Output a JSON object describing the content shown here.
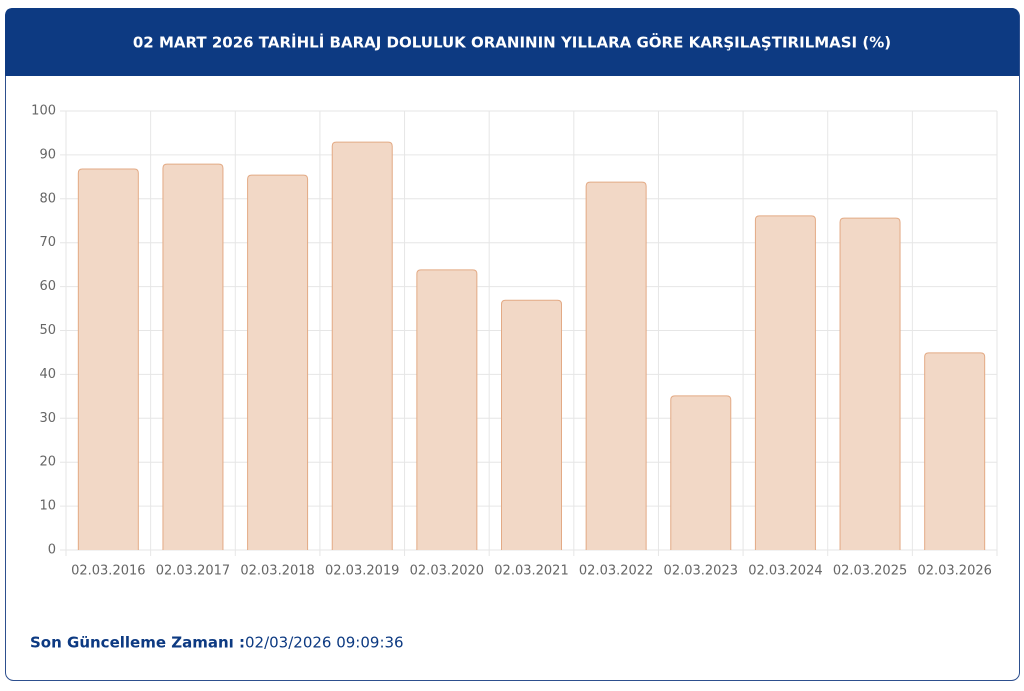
{
  "chart_data": {
    "type": "bar",
    "title": "02 MART 2026 TARİHLİ BARAJ DOLULUK ORANININ YILLARA GÖRE KARŞILAŞTIRILMASI (%)",
    "categories": [
      "02.03.2016",
      "02.03.2017",
      "02.03.2018",
      "02.03.2019",
      "02.03.2020",
      "02.03.2021",
      "02.03.2022",
      "02.03.2023",
      "02.03.2024",
      "02.03.2025",
      "02.03.2026"
    ],
    "values": [
      86.8,
      87.9,
      85.4,
      92.9,
      63.8,
      56.9,
      83.8,
      35.1,
      76.1,
      75.6,
      44.9
    ],
    "color": "#f2d8c6",
    "ylim": [
      0,
      100
    ],
    "yticks": [
      0,
      10,
      20,
      30,
      40,
      50,
      60,
      70,
      80,
      90,
      100
    ],
    "grid": true
  },
  "footer": {
    "label": "Son Güncelleme Zamanı :",
    "time": "02/03/2026 09:09:36"
  }
}
